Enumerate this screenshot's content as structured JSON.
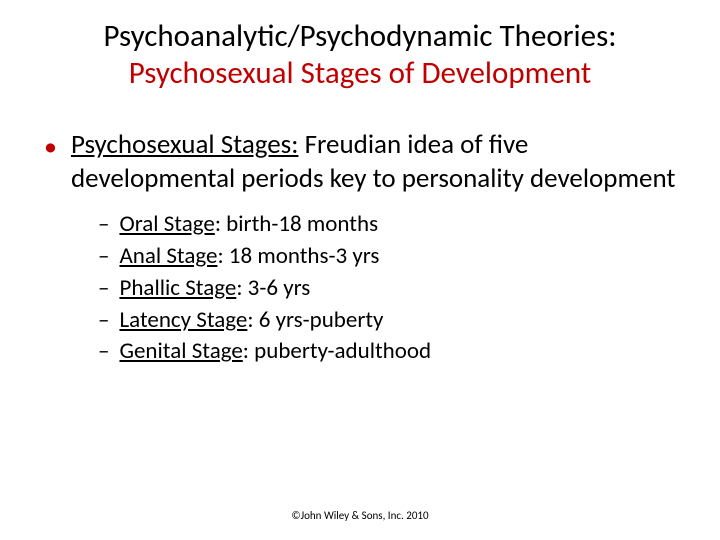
{
  "title": {
    "line1": "Psychoanalytic/Psychodynamic Theories:",
    "line2": "Psychosexual Stages of Development",
    "line1_color": "#000000",
    "line2_color": "#c00000",
    "fontsize": 31
  },
  "main_bullet": {
    "dot_color": "#c00000",
    "term": "Psychosexual Stages:",
    "definition": " Freudian idea of five developmental periods key to personality development",
    "fontsize": 27
  },
  "stages": [
    {
      "name": "Oral Stage",
      "range": ": birth-18 months"
    },
    {
      "name": "Anal Stage",
      "range": ": 18 months-3 yrs"
    },
    {
      "name": "Phallic Stage",
      "range": ": 3-6 yrs"
    },
    {
      "name": "Latency Stage",
      "range": ": 6 yrs-puberty"
    },
    {
      "name": "Genital Stage",
      "range": ": puberty-adulthood"
    }
  ],
  "sub_fontsize": 23,
  "copyright": "©John Wiley & Sons, Inc. 2010",
  "background_color": "#ffffff"
}
